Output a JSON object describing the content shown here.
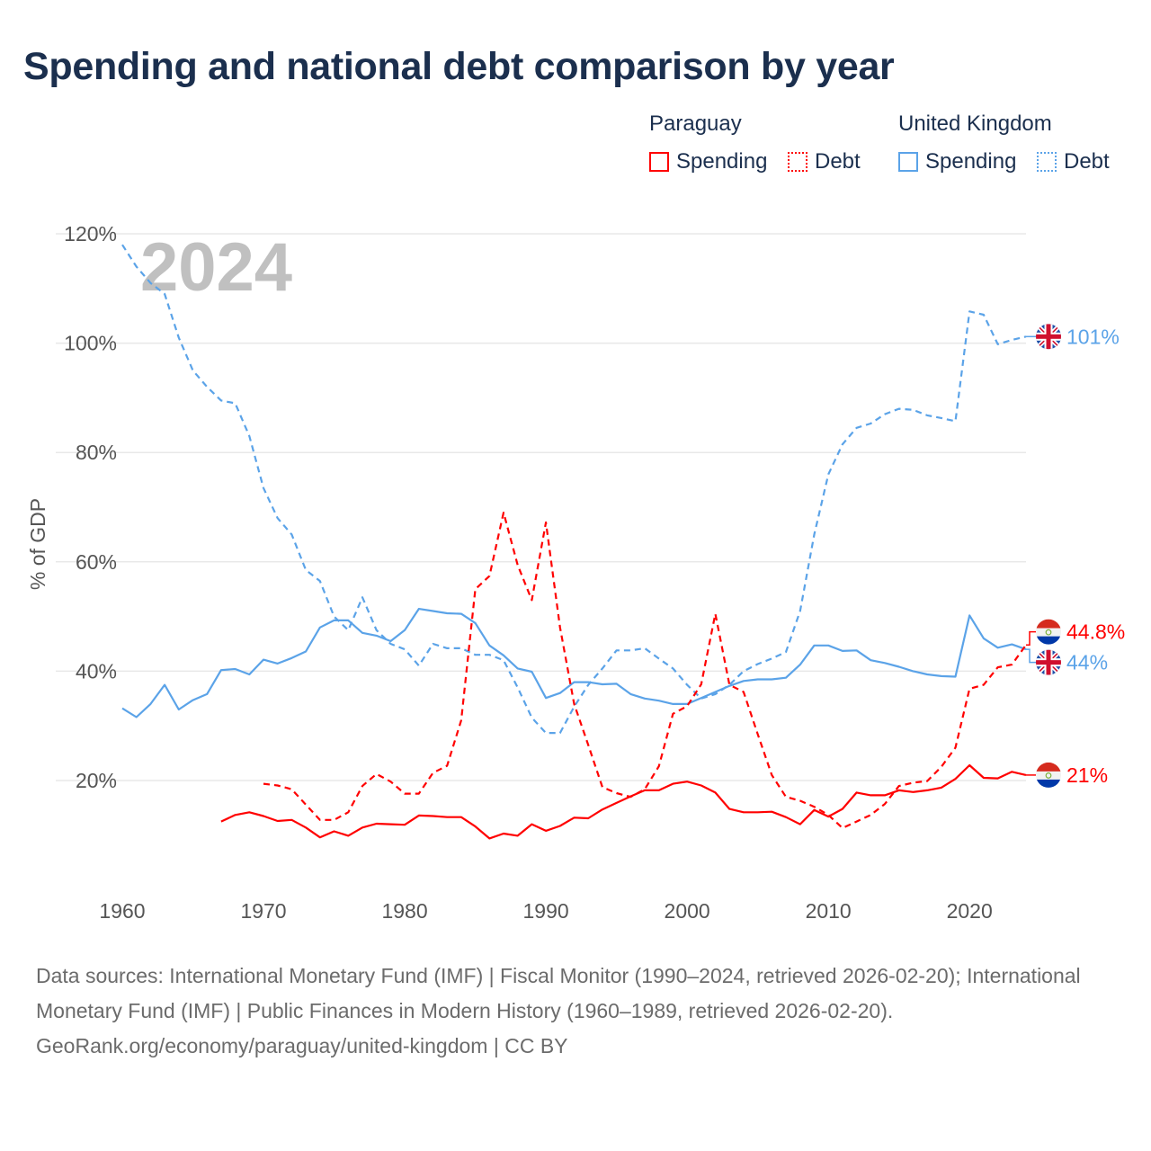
{
  "title": "Spending and national debt comparison by year",
  "legend": {
    "groups": [
      {
        "country": "Paraguay",
        "spending": "Spending",
        "debt": "Debt",
        "color": "#ff0000"
      },
      {
        "country": "United Kingdom",
        "spending": "Spending",
        "debt": "Debt",
        "color": "#5ba3e8"
      }
    ]
  },
  "footer": {
    "sources": "Data sources: International Monetary Fund (IMF) | Fiscal Monitor (1990–2024, retrieved 2026-02-20); International Monetary Fund (IMF) | Public Finances in Modern History (1960–1989, retrieved 2026-02-20).",
    "credit": "GeoRank.org/economy/paraguay/united-kingdom | CC BY"
  },
  "chart_data": {
    "type": "line",
    "title": "Spending and national debt comparison by year",
    "year_watermark": "2024",
    "xlabel": "",
    "ylabel": "% of GDP",
    "xlim": [
      1960,
      2024
    ],
    "ylim": [
      0,
      120
    ],
    "x_ticks": [
      1960,
      1970,
      1980,
      1990,
      2000,
      2010,
      2020
    ],
    "y_ticks": [
      "20%",
      "40%",
      "60%",
      "80%",
      "100%",
      "120%"
    ],
    "y_tick_values": [
      20,
      40,
      60,
      80,
      100,
      120
    ],
    "grid": true,
    "legend_position": "top-right",
    "series": [
      {
        "name": "United Kingdom Debt",
        "country": "uk",
        "dashed": true,
        "color": "#5ba3e8",
        "start": 1960,
        "end_label": "101%",
        "values": [
          118,
          114,
          111,
          109,
          101,
          95,
          92,
          89.5,
          89,
          83,
          73.5,
          68,
          65,
          58.5,
          56.5,
          50,
          47.5,
          53.5,
          47.5,
          45,
          44,
          41,
          45,
          44.2,
          44.2,
          43,
          43,
          42,
          37,
          31.5,
          28.7,
          28.7,
          33.5,
          37.5,
          40.5,
          43.8,
          43.8,
          44.2,
          42.3,
          40.5,
          37.5,
          35,
          35.8,
          37.5,
          40,
          41.3,
          42.3,
          43.5,
          51,
          65,
          76,
          81.5,
          84.5,
          85.3,
          87,
          88,
          87.8,
          86.8,
          86.3,
          85.7,
          105.8,
          105.2,
          99.8,
          100.6,
          101.2
        ]
      },
      {
        "name": "United Kingdom Spending",
        "country": "uk",
        "dashed": false,
        "color": "#5ba3e8",
        "start": 1960,
        "end_label": "44%",
        "values": [
          33.2,
          31.6,
          34,
          37.5,
          33,
          34.7,
          35.8,
          40.2,
          40.4,
          39.4,
          42.1,
          41.4,
          42.4,
          43.6,
          48,
          49.3,
          49.3,
          47,
          46.5,
          45.5,
          47.5,
          51.4,
          51,
          50.6,
          50.5,
          48.8,
          44.7,
          42.9,
          40.5,
          39.9,
          35.1,
          36,
          38,
          38,
          37.6,
          37.7,
          35.8,
          35,
          34.6,
          34,
          34,
          35.1,
          36.2,
          37.3,
          38.2,
          38.5,
          38.5,
          38.8,
          41.2,
          44.7,
          44.7,
          43.7,
          43.8,
          42,
          41.5,
          40.8,
          40,
          39.4,
          39.1,
          39,
          50.2,
          46,
          44.3,
          44.9,
          44
        ]
      },
      {
        "name": "Paraguay Debt",
        "country": "py",
        "dashed": true,
        "color": "#ff0000",
        "start": 1970,
        "end_label": "44.8%",
        "values": [
          19.4,
          19.1,
          18.4,
          15.6,
          12.8,
          12.8,
          14.2,
          19,
          21.2,
          19.8,
          17.6,
          17.6,
          21.4,
          22.7,
          31,
          55,
          57.4,
          69,
          59.4,
          53,
          67.2,
          48,
          34,
          26.5,
          18.8,
          17.7,
          17,
          18.4,
          22.6,
          32.2,
          33.6,
          37.6,
          50.5,
          37.5,
          36.2,
          28.5,
          21,
          17,
          16.3,
          15.2,
          13.7,
          11.3,
          12.5,
          13.7,
          15.7,
          19,
          19.6,
          19.9,
          22.5,
          26,
          36.8,
          37.5,
          40.7,
          41.2,
          44.8
        ]
      },
      {
        "name": "Paraguay Spending",
        "country": "py",
        "dashed": false,
        "color": "#ff0000",
        "start": 1967,
        "end_label": "21%",
        "values": [
          12.5,
          13.7,
          14.2,
          13.5,
          12.6,
          12.8,
          11.4,
          9.6,
          10.7,
          9.9,
          11.4,
          12.1,
          12,
          11.9,
          13.6,
          13.5,
          13.3,
          13.3,
          11.6,
          9.4,
          10.3,
          9.9,
          12,
          10.8,
          11.7,
          13.2,
          13.1,
          14.7,
          15.9,
          17.1,
          18.2,
          18.2,
          19.4,
          19.8,
          19.1,
          17.8,
          14.8,
          14.2,
          14.2,
          14.3,
          13.3,
          12,
          14.6,
          13.4,
          14.8,
          17.8,
          17.3,
          17.3,
          18.2,
          17.9,
          18.2,
          18.7,
          20.3,
          22.8,
          20.5,
          20.4,
          21.6,
          21
        ]
      }
    ]
  }
}
